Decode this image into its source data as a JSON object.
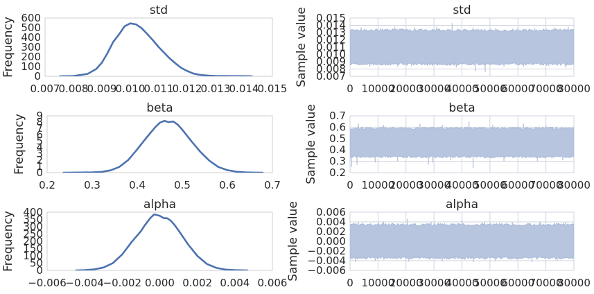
{
  "chart_data": [
    {
      "id": "std-kde",
      "type": "line",
      "title": "std",
      "xlabel": "",
      "ylabel": "Frequency",
      "xlim": [
        0.007,
        0.015
      ],
      "ylim": [
        0,
        600
      ],
      "grid": false,
      "xtick_values": [
        0.007,
        0.008,
        0.009,
        0.01,
        0.011,
        0.012,
        0.013,
        0.014,
        0.015
      ],
      "xtick_labels": [
        "0.007",
        "0.008",
        "0.009",
        "0.010",
        "0.011",
        "0.012",
        "0.013",
        "0.014",
        "0.015"
      ],
      "ytick_values": [
        0,
        100,
        200,
        300,
        400,
        500,
        600
      ],
      "ytick_labels": [
        "0",
        "100",
        "200",
        "300",
        "400",
        "500",
        "600"
      ],
      "series": [
        {
          "name": "std",
          "x": [
            0.0075,
            0.008,
            0.0085,
            0.0088,
            0.009,
            0.0092,
            0.0094,
            0.0096,
            0.0098,
            0.01,
            0.0102,
            0.0104,
            0.0106,
            0.0108,
            0.011,
            0.0112,
            0.0114,
            0.0116,
            0.0118,
            0.012,
            0.0122,
            0.0124,
            0.0126,
            0.0128,
            0.013,
            0.0133,
            0.0136,
            0.014,
            0.0143
          ],
          "y": [
            0,
            2,
            25,
            75,
            140,
            240,
            355,
            430,
            515,
            545,
            535,
            495,
            435,
            370,
            300,
            240,
            180,
            130,
            85,
            55,
            30,
            17,
            10,
            6,
            3,
            2,
            1,
            1,
            0
          ]
        }
      ]
    },
    {
      "id": "std-trace",
      "type": "area",
      "title": "std",
      "xlabel": "",
      "ylabel": "Sample value",
      "xlim": [
        0,
        80000
      ],
      "ylim": [
        0.007,
        0.015
      ],
      "grid": true,
      "xtick_values": [
        0,
        10000,
        20000,
        30000,
        40000,
        50000,
        60000,
        70000,
        80000
      ],
      "xtick_labels": [
        "0",
        "10000",
        "20000",
        "30000",
        "40000",
        "50000",
        "60000",
        "70000",
        "80000"
      ],
      "ytick_values": [
        0.007,
        0.008,
        0.009,
        0.01,
        0.011,
        0.012,
        0.013,
        0.014,
        0.015
      ],
      "ytick_labels": [
        "0.007",
        "0.008",
        "0.009",
        "0.010",
        "0.011",
        "0.012",
        "0.013",
        "0.014",
        "0.015"
      ],
      "series": [
        {
          "name": "std",
          "x": [
            0,
            80000
          ],
          "typical_range": [
            0.0085,
            0.0135
          ],
          "spikes_high": [
            [
              4000,
              0.0137
            ],
            [
              11000,
              0.0136
            ],
            [
              16000,
              0.0138
            ],
            [
              23000,
              0.0137
            ],
            [
              31000,
              0.0138
            ],
            [
              36500,
              0.0143
            ],
            [
              44000,
              0.0137
            ],
            [
              52000,
              0.0136
            ],
            [
              60000,
              0.0137
            ],
            [
              66000,
              0.0136
            ],
            [
              73000,
              0.0137
            ],
            [
              78000,
              0.0138
            ]
          ],
          "spikes_low": [
            [
              7000,
              0.0083
            ],
            [
              17000,
              0.0083
            ],
            [
              22000,
              0.0084
            ],
            [
              38000,
              0.0082
            ],
            [
              44800,
              0.0077
            ],
            [
              48300,
              0.0076
            ],
            [
              55000,
              0.0083
            ],
            [
              62000,
              0.0083
            ],
            [
              71000,
              0.0084
            ],
            [
              77000,
              0.0082
            ]
          ]
        }
      ]
    },
    {
      "id": "beta-kde",
      "type": "line",
      "title": "beta",
      "xlabel": "",
      "ylabel": "Frequency",
      "xlim": [
        0.2,
        0.7
      ],
      "ylim": [
        0,
        9
      ],
      "grid": false,
      "xtick_values": [
        0.2,
        0.3,
        0.4,
        0.5,
        0.6,
        0.7
      ],
      "xtick_labels": [
        "0.2",
        "0.3",
        "0.4",
        "0.5",
        "0.6",
        "0.7"
      ],
      "ytick_values": [
        0,
        1,
        2,
        3,
        4,
        5,
        6,
        7,
        8,
        9
      ],
      "ytick_labels": [
        "0",
        "1",
        "2",
        "3",
        "4",
        "5",
        "6",
        "7",
        "8",
        "9"
      ],
      "series": [
        {
          "name": "beta",
          "x": [
            0.235,
            0.27,
            0.3,
            0.32,
            0.34,
            0.36,
            0.38,
            0.4,
            0.42,
            0.44,
            0.45,
            0.46,
            0.47,
            0.48,
            0.49,
            0.5,
            0.52,
            0.54,
            0.56,
            0.58,
            0.6,
            0.62,
            0.64,
            0.66,
            0.68
          ],
          "y": [
            0,
            0.02,
            0.05,
            0.12,
            0.35,
            0.9,
            2.0,
            3.7,
            5.5,
            7.2,
            7.9,
            8.2,
            8.0,
            8.1,
            7.6,
            6.8,
            5.0,
            3.3,
            1.9,
            0.9,
            0.4,
            0.15,
            0.05,
            0.01,
            0
          ]
        }
      ]
    },
    {
      "id": "beta-trace",
      "type": "area",
      "title": "beta",
      "xlabel": "",
      "ylabel": "Sample value",
      "xlim": [
        0,
        80000
      ],
      "ylim": [
        0.2,
        0.7
      ],
      "grid": true,
      "xtick_values": [
        0,
        10000,
        20000,
        30000,
        40000,
        50000,
        60000,
        70000,
        80000
      ],
      "xtick_labels": [
        "0",
        "10000",
        "20000",
        "30000",
        "40000",
        "50000",
        "60000",
        "70000",
        "80000"
      ],
      "ytick_values": [
        0.2,
        0.3,
        0.4,
        0.5,
        0.6,
        0.7
      ],
      "ytick_labels": [
        "0.2",
        "0.3",
        "0.4",
        "0.5",
        "0.6",
        "0.7"
      ],
      "series": [
        {
          "name": "beta",
          "x": [
            0,
            80000
          ],
          "typical_range": [
            0.33,
            0.6
          ],
          "spikes_high": [
            [
              3000,
              0.63
            ],
            [
              12000,
              0.62
            ],
            [
              25000,
              0.63
            ],
            [
              33000,
              0.62
            ],
            [
              42500,
              0.65
            ],
            [
              51000,
              0.62
            ],
            [
              62000,
              0.63
            ],
            [
              70000,
              0.62
            ]
          ],
          "spikes_low": [
            [
              500,
              0.25
            ],
            [
              2500,
              0.27
            ],
            [
              9000,
              0.29
            ],
            [
              17000,
              0.3
            ],
            [
              28000,
              0.27
            ],
            [
              29500,
              0.29
            ],
            [
              36000,
              0.31
            ],
            [
              44000,
              0.24
            ],
            [
              55000,
              0.3
            ],
            [
              67000,
              0.3
            ],
            [
              76000,
              0.31
            ]
          ]
        }
      ]
    },
    {
      "id": "alpha-kde",
      "type": "line",
      "title": "alpha",
      "xlabel": "",
      "ylabel": "Frequency",
      "xlim": [
        -0.006,
        0.006
      ],
      "ylim": [
        0,
        400
      ],
      "grid": false,
      "xtick_values": [
        -0.006,
        -0.004,
        -0.002,
        0.0,
        0.002,
        0.004,
        0.006
      ],
      "xtick_labels": [
        "−0.006",
        "−0.004",
        "−0.002",
        "0.000",
        "0.002",
        "0.004",
        "0.006"
      ],
      "ytick_values": [
        0,
        50,
        100,
        150,
        200,
        250,
        300,
        350,
        400
      ],
      "ytick_labels": [
        "0",
        "50",
        "100",
        "150",
        "200",
        "250",
        "300",
        "350",
        "400"
      ],
      "series": [
        {
          "name": "alpha",
          "x": [
            -0.0045,
            -0.004,
            -0.0035,
            -0.003,
            -0.0025,
            -0.002,
            -0.0015,
            -0.001,
            -0.0008,
            -0.0005,
            -0.0003,
            0.0,
            0.0002,
            0.0004,
            0.0006,
            0.0008,
            0.001,
            0.0015,
            0.002,
            0.0025,
            0.003,
            0.0035,
            0.004,
            0.0047
          ],
          "y": [
            0,
            2,
            7,
            20,
            50,
            110,
            195,
            270,
            310,
            360,
            385,
            375,
            360,
            358,
            340,
            310,
            275,
            180,
            100,
            45,
            18,
            6,
            2,
            0
          ]
        }
      ]
    },
    {
      "id": "alpha-trace",
      "type": "area",
      "title": "alpha",
      "xlabel": "",
      "ylabel": "Sample value",
      "xlim": [
        0,
        80000
      ],
      "ylim": [
        -0.006,
        0.006
      ],
      "grid": true,
      "xtick_values": [
        0,
        10000,
        20000,
        30000,
        40000,
        50000,
        60000,
        70000,
        80000
      ],
      "xtick_labels": [
        "0",
        "10000",
        "20000",
        "30000",
        "40000",
        "50000",
        "60000",
        "70000",
        "80000"
      ],
      "ytick_values": [
        -0.006,
        -0.004,
        -0.002,
        0.0,
        0.002,
        0.004,
        0.006
      ],
      "ytick_labels": [
        "−0.006",
        "−0.004",
        "−0.002",
        "0.000",
        "0.002",
        "0.004",
        "0.006"
      ],
      "series": [
        {
          "name": "alpha",
          "x": [
            0,
            80000
          ],
          "typical_range": [
            -0.0037,
            0.0037
          ],
          "spikes_high": [
            [
              3000,
              0.004
            ],
            [
              12000,
              0.0041
            ],
            [
              20500,
              0.0046
            ],
            [
              29000,
              0.004
            ],
            [
              40000,
              0.0045
            ],
            [
              48000,
              0.0041
            ],
            [
              58000,
              0.004
            ],
            [
              68000,
              0.0041
            ],
            [
              77000,
              0.004
            ]
          ],
          "spikes_low": [
            [
              2000,
              -0.0043
            ],
            [
              9000,
              -0.0041
            ],
            [
              21000,
              -0.0042
            ],
            [
              33000,
              -0.0041
            ],
            [
              44000,
              -0.0043
            ],
            [
              52000,
              -0.0041
            ],
            [
              65000,
              -0.0042
            ],
            [
              74000,
              -0.004
            ]
          ]
        }
      ]
    }
  ],
  "colors": {
    "line": "#4c72b0",
    "trace_band": "#b7c5df",
    "grid": "#cfd3dc",
    "frame": "#cfcfcf",
    "text": "#262626"
  }
}
